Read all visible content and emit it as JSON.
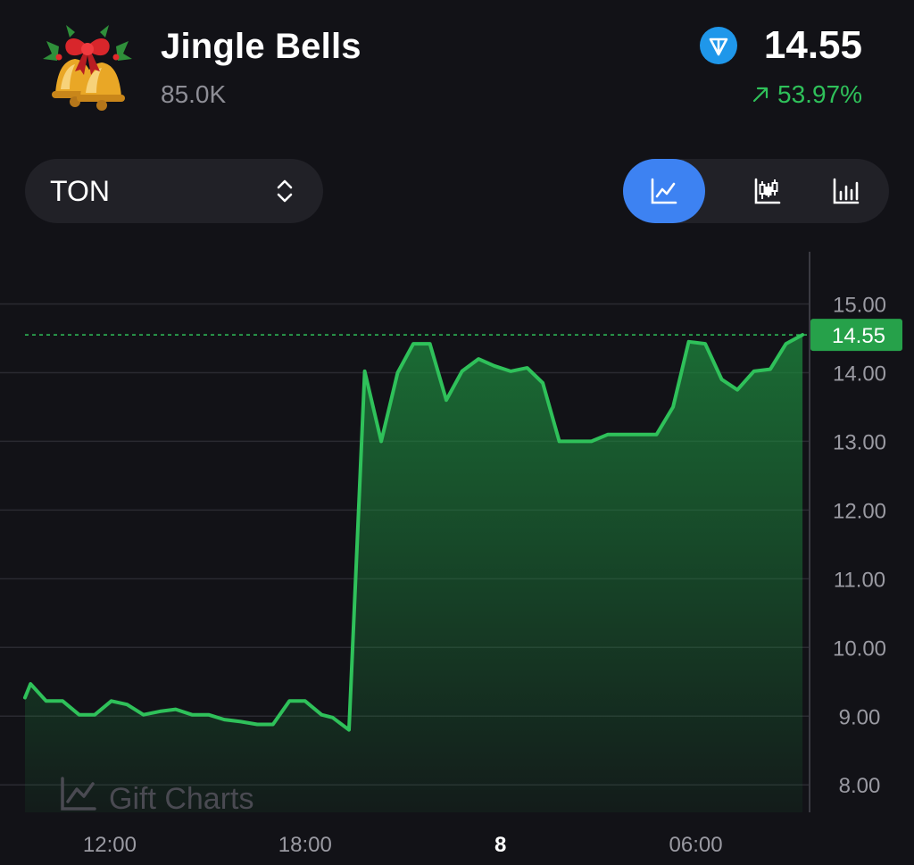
{
  "header": {
    "title": "Jingle Bells",
    "volume": "85.0K",
    "icon": "jingle-bells-gift-icon",
    "currency_badge_icon": "ton-icon",
    "price": "14.55",
    "change": "53.97%",
    "change_icon": "arrow-up-right-icon",
    "change_color": "#2fc15a"
  },
  "controls": {
    "currency": "TON",
    "currency_icon": "chevron-up-down-icon",
    "chart_types": [
      {
        "name": "line-chart-icon",
        "active": true
      },
      {
        "name": "candlestick-chart-icon",
        "active": false
      },
      {
        "name": "bar-chart-icon",
        "active": false
      }
    ],
    "accent_color": "#3d82f2"
  },
  "chart_data": {
    "type": "area",
    "watermark": "Gift Charts",
    "current_value_label": "14.55",
    "current_value": 14.55,
    "line_color": "#2fc15a",
    "ylim": [
      7.6,
      15.76
    ],
    "y_ticks": [
      8.0,
      9.0,
      10.0,
      11.0,
      12.0,
      13.0,
      14.0,
      15.0
    ],
    "y_tick_labels": [
      "8.00",
      "9.00",
      "10.00",
      "11.00",
      "12.00",
      "13.00",
      "14.00",
      "15.00"
    ],
    "x_tick_labels": [
      "12:00",
      "18:00",
      "8",
      "06:00"
    ],
    "x_tick_bold": [
      false,
      false,
      true,
      false
    ],
    "x_tick_positions": [
      0.108,
      0.357,
      0.606,
      0.855
    ],
    "x": [
      0,
      0.007,
      0.027,
      0.048,
      0.069,
      0.089,
      0.11,
      0.13,
      0.151,
      0.172,
      0.192,
      0.213,
      0.234,
      0.254,
      0.275,
      0.296,
      0.316,
      0.337,
      0.357,
      0.378,
      0.392,
      0.413,
      0.433,
      0.454,
      0.475,
      0.495,
      0.516,
      0.537,
      0.557,
      0.578,
      0.598,
      0.619,
      0.64,
      0.66,
      0.681,
      0.702,
      0.722,
      0.743,
      0.764,
      0.784,
      0.805,
      0.826,
      0.846,
      0.867,
      0.888,
      0.908,
      0.929,
      0.95,
      0.97,
      0.991
    ],
    "y": [
      9.27,
      9.47,
      9.22,
      9.22,
      9.02,
      9.02,
      9.22,
      9.17,
      9.02,
      9.07,
      9.1,
      9.02,
      9.02,
      8.95,
      8.92,
      8.88,
      8.88,
      9.22,
      9.22,
      9.02,
      8.98,
      8.8,
      14.02,
      13.0,
      14.0,
      14.42,
      14.42,
      13.6,
      14.02,
      14.2,
      14.1,
      14.02,
      14.07,
      13.85,
      13.0,
      13.0,
      13.0,
      13.1,
      13.1,
      13.1,
      13.1,
      13.5,
      14.45,
      14.42,
      13.9,
      13.75,
      14.02,
      14.05,
      14.42,
      14.55
    ]
  }
}
